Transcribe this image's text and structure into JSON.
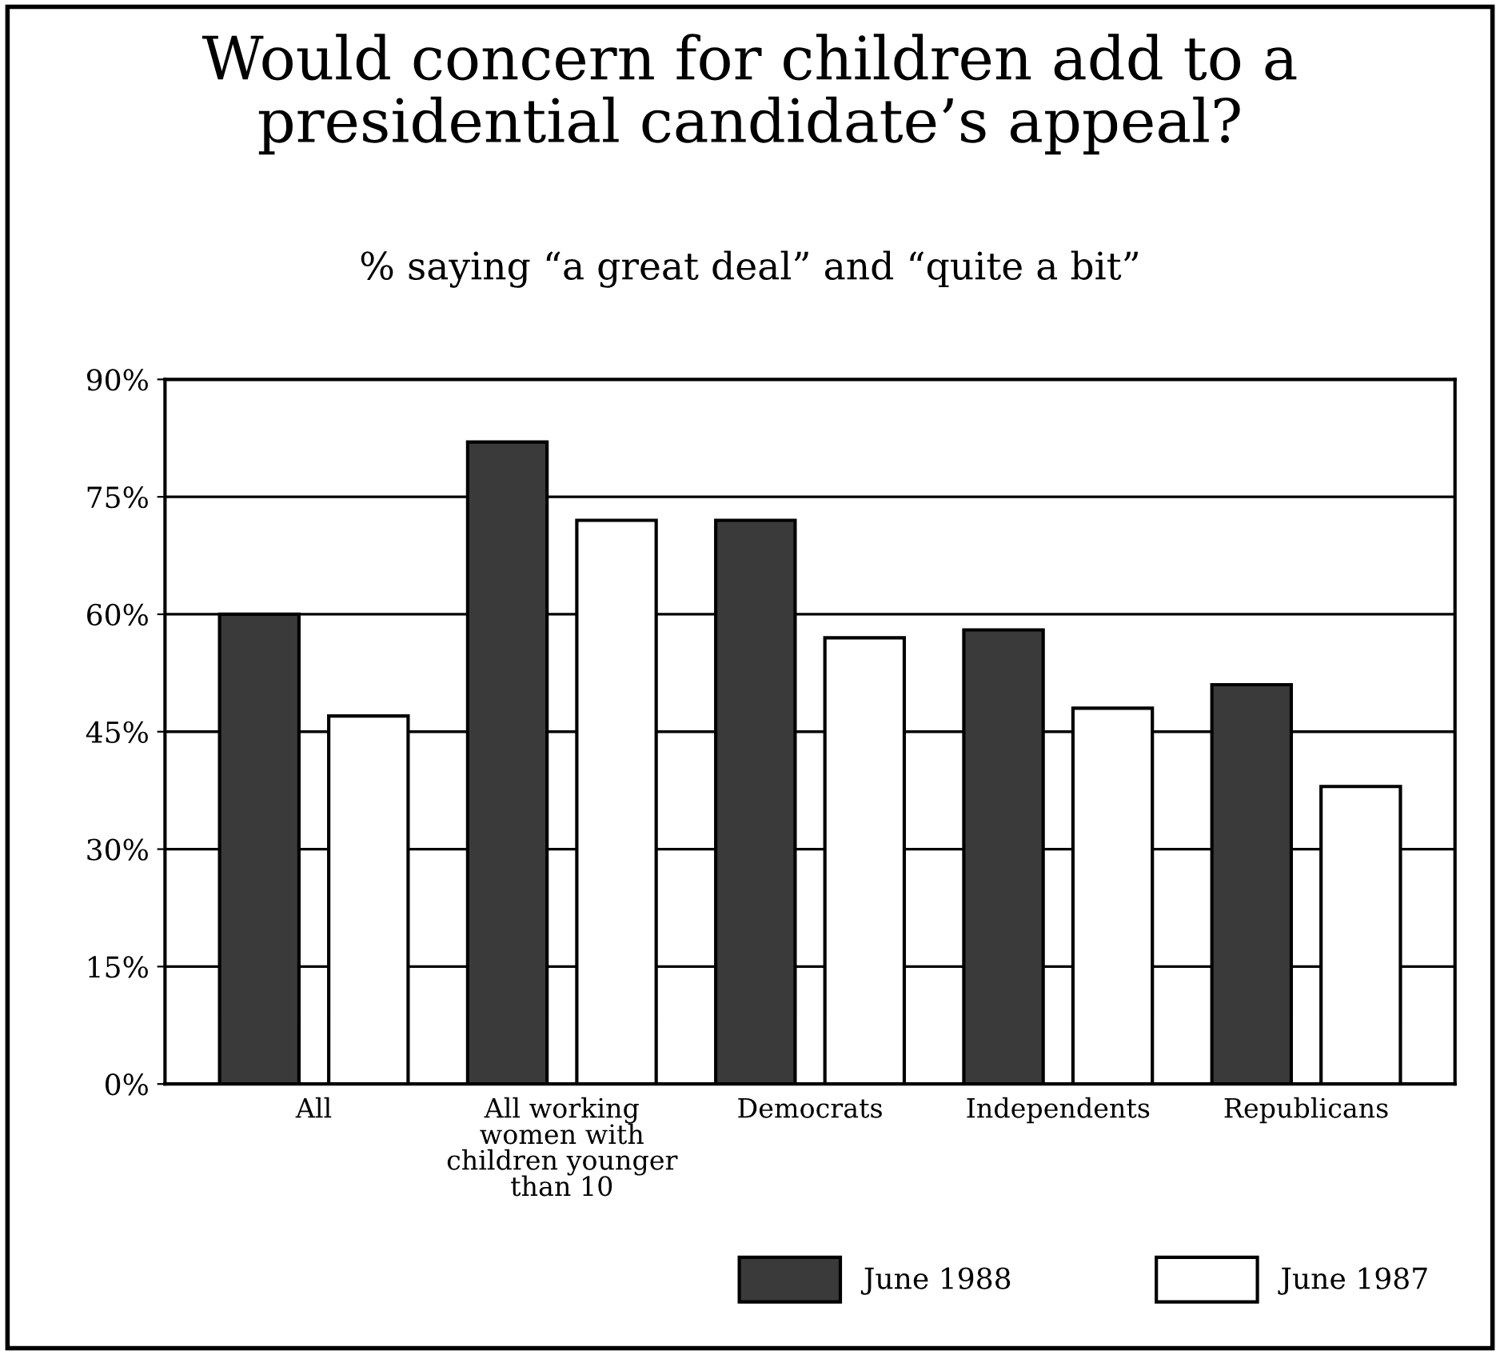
{
  "chart_data": {
    "type": "bar",
    "title": "Would concern for children add to a\npresidential candidate’s appeal?",
    "subtitle": "% saying “a great deal” and “quite a bit”",
    "categories": [
      "All",
      "All working\nwomen with\nchildren younger\nthan 10",
      "Democrats",
      "Independents",
      "Republicans"
    ],
    "series": [
      {
        "name": "June 1988",
        "color": "#3a3a3a",
        "values": [
          60,
          82,
          72,
          58,
          51
        ]
      },
      {
        "name": "June 1987",
        "color": "#ffffff",
        "values": [
          47,
          72,
          57,
          48,
          38
        ]
      }
    ],
    "ylim": [
      0,
      90
    ],
    "yticks": [
      {
        "value": 0,
        "label": "0%"
      },
      {
        "value": 15,
        "label": "15%"
      },
      {
        "value": 30,
        "label": "30%"
      },
      {
        "value": 45,
        "label": "45%"
      },
      {
        "value": 60,
        "label": "60%"
      },
      {
        "value": 75,
        "label": "75%"
      },
      {
        "value": 90,
        "label": "90%"
      }
    ],
    "grid": "y",
    "legend": "bottom"
  }
}
